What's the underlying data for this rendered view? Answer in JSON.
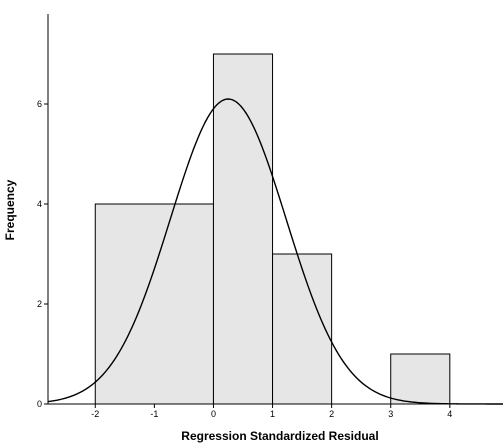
{
  "chart_data": {
    "type": "bar",
    "title": "",
    "xlabel": "Regression Standardized Residual",
    "ylabel": "Frequency",
    "xlim": [
      -2.8,
      4.9
    ],
    "ylim": [
      0,
      7.8
    ],
    "x_ticks": [
      -2,
      -1,
      0,
      1,
      2,
      3,
      4
    ],
    "y_ticks": [
      0,
      2,
      4,
      6
    ],
    "bins": [
      {
        "start": -2,
        "end": 0,
        "value": 4
      },
      {
        "start": 0,
        "end": 1,
        "value": 7
      },
      {
        "start": 1,
        "end": 2,
        "value": 3
      },
      {
        "start": 3,
        "end": 4,
        "value": 1
      }
    ],
    "normal_curve": {
      "mean": 0.25,
      "sd": 0.98,
      "peak": 6.1
    },
    "grid": false,
    "legend": "none"
  }
}
